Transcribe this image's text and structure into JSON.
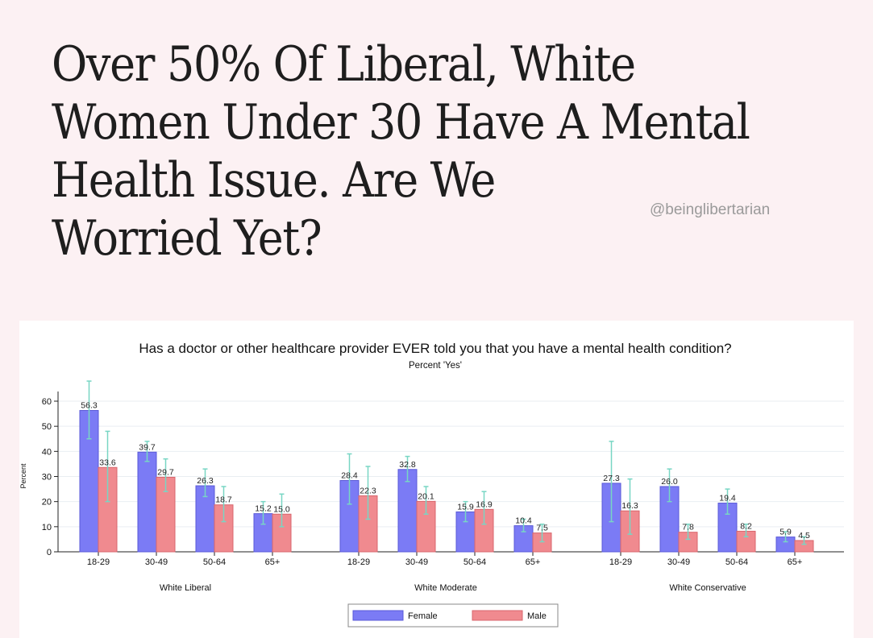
{
  "article": {
    "headline_lines": [
      "Over 50% Of Liberal, White",
      "Women Under 30 Have A Mental",
      "Health Issue. Are We",
      "Worried Yet?"
    ],
    "handle": "@beinglibertarian"
  },
  "colors": {
    "female": "#7b7bf5",
    "male": "#f08a8f",
    "error_bar": "#78d6c4",
    "grid": "#e9eef2"
  },
  "chart_data": {
    "type": "bar",
    "title": "Has a doctor or other healthcare provider EVER told you that you have a mental health condition?",
    "subtitle": "Percent 'Yes'",
    "ylabel": "Percent",
    "ylim": [
      0,
      65
    ],
    "yticks": [
      0,
      10,
      20,
      30,
      40,
      50,
      60
    ],
    "grid": true,
    "groups": [
      "White Liberal",
      "White Moderate",
      "White Conservative"
    ],
    "categories": [
      "18-29",
      "30-49",
      "50-64",
      "65+"
    ],
    "series": [
      {
        "name": "Female",
        "values": [
          [
            56.3,
            39.7,
            26.3,
            15.2
          ],
          [
            28.4,
            32.8,
            15.9,
            10.4
          ],
          [
            27.3,
            26.0,
            19.4,
            5.9
          ]
        ],
        "labels": [
          [
            "56.3",
            "39.7",
            "26.3",
            "15.2"
          ],
          [
            "28.4",
            "32.8",
            "15.9",
            "10.4"
          ],
          [
            "27.3",
            "26.0",
            "19.4",
            "5.9"
          ]
        ],
        "ci": [
          [
            [
              45,
              68
            ],
            [
              36,
              44
            ],
            [
              22,
              33
            ],
            [
              11,
              20
            ]
          ],
          [
            [
              19,
              39
            ],
            [
              28,
              38
            ],
            [
              12,
              20
            ],
            [
              8,
              13
            ]
          ],
          [
            [
              12,
              44
            ],
            [
              20,
              33
            ],
            [
              15,
              25
            ],
            [
              4,
              8
            ]
          ]
        ]
      },
      {
        "name": "Male",
        "values": [
          [
            33.6,
            29.7,
            18.7,
            15.0
          ],
          [
            22.3,
            20.1,
            16.9,
            7.5
          ],
          [
            16.3,
            7.8,
            8.2,
            4.5
          ]
        ],
        "labels": [
          [
            "33.6",
            "29.7",
            "18.7",
            "15.0"
          ],
          [
            "22.3",
            "20.1",
            "16.9",
            "7.5"
          ],
          [
            "16.3",
            "7.8",
            "8.2",
            "4.5"
          ]
        ],
        "ci": [
          [
            [
              20,
              48
            ],
            [
              24,
              37
            ],
            [
              12,
              26
            ],
            [
              10,
              23
            ]
          ],
          [
            [
              13,
              34
            ],
            [
              15,
              26
            ],
            [
              11,
              24
            ],
            [
              4,
              11
            ]
          ],
          [
            [
              7,
              29
            ],
            [
              5,
              11
            ],
            [
              6,
              11
            ],
            [
              3,
              6
            ]
          ]
        ]
      }
    ],
    "legend": {
      "position": "bottom",
      "items": [
        "Female",
        "Male"
      ]
    }
  }
}
